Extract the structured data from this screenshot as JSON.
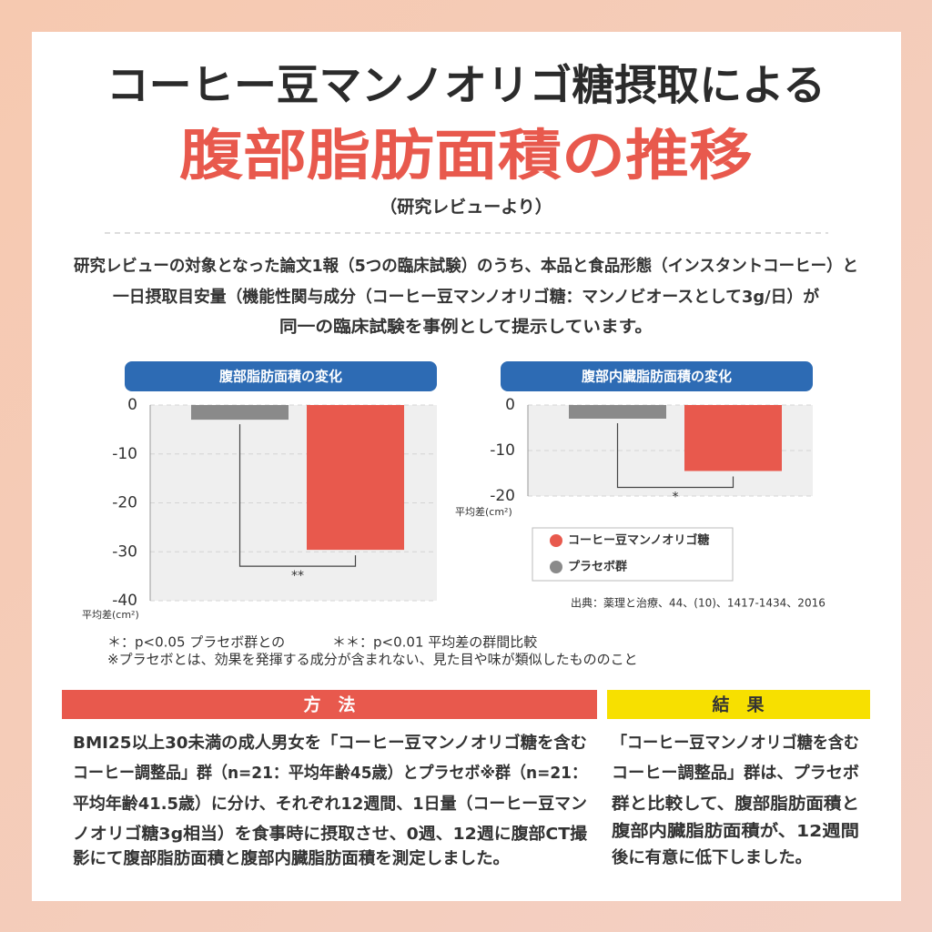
{
  "header": {
    "title": "コーヒー豆マンノオリゴ糖摂取による",
    "subtitle": "腹部脂肪面積の推移",
    "source": "（研究レビューより）"
  },
  "intro": [
    "研究レビューの対象となった論文1報（5つの臨床試験）のうち、本品と食品形態（インスタントコーヒー）と",
    "一日摂取目安量（機能性関与成分（コーヒー豆マンノオリゴ糖：マンノビオースとして3g/日）が",
    "同一の臨床試験を事例として提示しています。"
  ],
  "chart_data": [
    {
      "type": "bar",
      "title": "腹部脂肪面積の変化",
      "categories": [
        null
      ],
      "series": [
        {
          "color": "#8a8a8a",
          "values": [
            -3
          ]
        },
        {
          "color": "#e8594d",
          "values": [
            -29.6
          ]
        }
      ],
      "ylabel": "平均差(cm²)",
      "ylim": [
        -40,
        0
      ],
      "yticks": [
        0,
        -10,
        -20,
        -30,
        -40
      ],
      "grid": true,
      "annotation": "**"
    },
    {
      "type": "bar",
      "title": "腹部内臓脂肪面積の変化",
      "categories": [
        null
      ],
      "series": [
        {
          "color": "#8a8a8a",
          "values": [
            -3
          ]
        },
        {
          "color": "#e8594d",
          "values": [
            -14.5
          ]
        }
      ],
      "ylabel": "平均差(cm²)",
      "ylim": [
        -20,
        0
      ],
      "yticks": [
        0,
        -10,
        -20
      ],
      "grid": true,
      "annotation": "*"
    }
  ],
  "legend": [
    {
      "name": "コーヒー豆マンノオリゴ糖",
      "color": "#e8594d"
    },
    {
      "name": "プラセボ群",
      "color": "#8a8a8a"
    }
  ],
  "citation": "出典：薬理と治療、44、(10)、1417-1434、2016",
  "notes": [
    "＊：p<0.05 プラセボ群との",
    "＊＊：p<0.01 平均差の群間比較",
    "※プラセボとは、効果を発揮する成分が含まれない、見た目や味が類似したもののこと"
  ],
  "method": {
    "heading": "方　法",
    "lines": [
      "BMI25以上30未満の成人男女を「コーヒー豆マンノオリゴ糖を含む",
      "コーヒー調整品」群（n=21：平均年齢45歳）とプラセボ※群（n=21：",
      "平均年齢41.5歳）に分け、それぞれ12週間、1日量（コーヒー豆マン",
      "ノオリゴ糖3g相当）を食事時に摂取させ、0週、12週に腹部CT撮",
      "影にて腹部脂肪面積と腹部内臓脂肪面積を測定しました。"
    ]
  },
  "result": {
    "heading": "結　果",
    "lines": [
      "「コーヒー豆マンノオリゴ糖を含む",
      "コーヒー調整品」群は、プラセボ",
      "群と比較して、腹部脂肪面積と",
      "腹部内臓脂肪面積が、12週間",
      "後に有意に低下しました。"
    ]
  }
}
